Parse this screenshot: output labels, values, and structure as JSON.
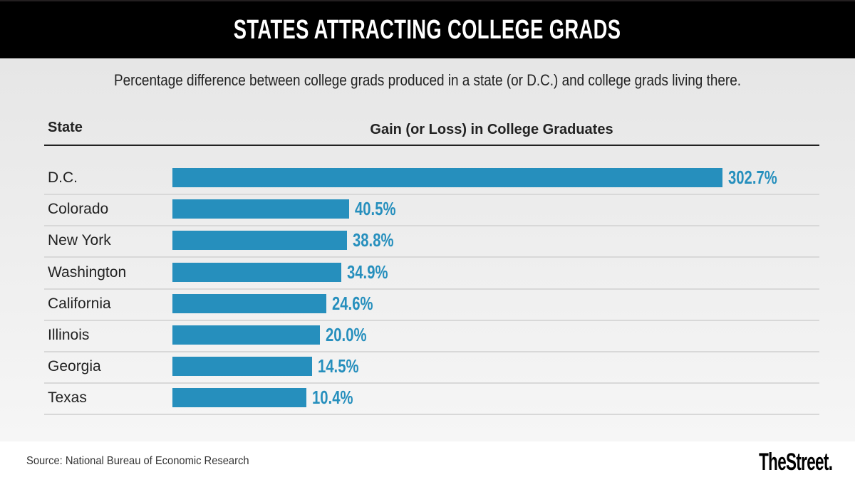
{
  "header": {
    "title": "STATES ATTRACTING COLLEGE GRADS"
  },
  "subtitle": "Percentage difference between college grads produced in a state (or D.C.) and college grads living there.",
  "columns": {
    "state": "State",
    "gain": "Gain (or Loss) in College Graduates"
  },
  "footer": {
    "source": "Source: National Bureau of Economic Research",
    "logo": "TheStreet."
  },
  "colors": {
    "bar": "#268fbd",
    "header_bg": "#000000"
  },
  "chart_data": {
    "type": "bar",
    "orientation": "horizontal",
    "title": "STATES ATTRACTING COLLEGE GRADS",
    "subtitle": "Percentage difference between college grads produced in a state (or D.C.) and college grads living there.",
    "xlabel": "Gain (or Loss) in College Graduates",
    "ylabel": "State",
    "categories": [
      "D.C.",
      "Colorado",
      "New York",
      "Washington",
      "California",
      "Illinois",
      "Georgia",
      "Texas"
    ],
    "values": [
      302.7,
      40.5,
      38.8,
      34.9,
      24.6,
      20.0,
      14.5,
      10.4
    ],
    "labels": [
      "302.7%",
      "40.5%",
      "38.8%",
      "34.9%",
      "24.6%",
      "20.0%",
      "14.5%",
      "10.4%"
    ],
    "unit": "%",
    "grid": false,
    "legend": "none"
  }
}
